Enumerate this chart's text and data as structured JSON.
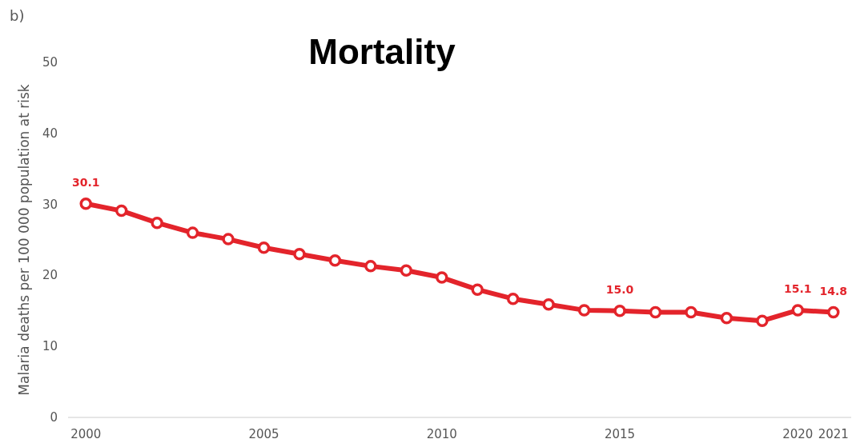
{
  "chart_data": {
    "type": "line",
    "title": "Mortality",
    "ylabel": "Malaria deaths per 100 000 population at risk",
    "annotations": [
      "b)"
    ],
    "x": [
      2000,
      2001,
      2002,
      2003,
      2004,
      2005,
      2006,
      2007,
      2008,
      2009,
      2010,
      2011,
      2012,
      2013,
      2014,
      2015,
      2016,
      2017,
      2018,
      2019,
      2020,
      2021
    ],
    "series": [
      {
        "color": "#e3242b",
        "values": [
          30.1,
          29.1,
          27.4,
          26.0,
          25.1,
          23.9,
          23.0,
          22.1,
          21.3,
          20.7,
          19.7,
          18.0,
          16.7,
          15.9,
          15.1,
          15.0,
          14.8,
          14.8,
          14.0,
          13.6,
          15.1,
          14.8
        ],
        "value_labels": [
          "30.1",
          null,
          null,
          null,
          null,
          null,
          null,
          null,
          null,
          null,
          null,
          null,
          null,
          null,
          null,
          "15.0",
          null,
          null,
          null,
          null,
          "15.1",
          "14.8"
        ]
      }
    ],
    "xlim": [
      1999.5,
      2021.5
    ],
    "ylim": [
      0,
      50
    ],
    "xticks": [
      2000,
      2005,
      2010,
      2015,
      2020,
      2021
    ],
    "yticks": [
      0,
      10,
      20,
      30,
      40,
      50
    ],
    "grid": false,
    "marker": "circle",
    "line_style": "solid"
  }
}
